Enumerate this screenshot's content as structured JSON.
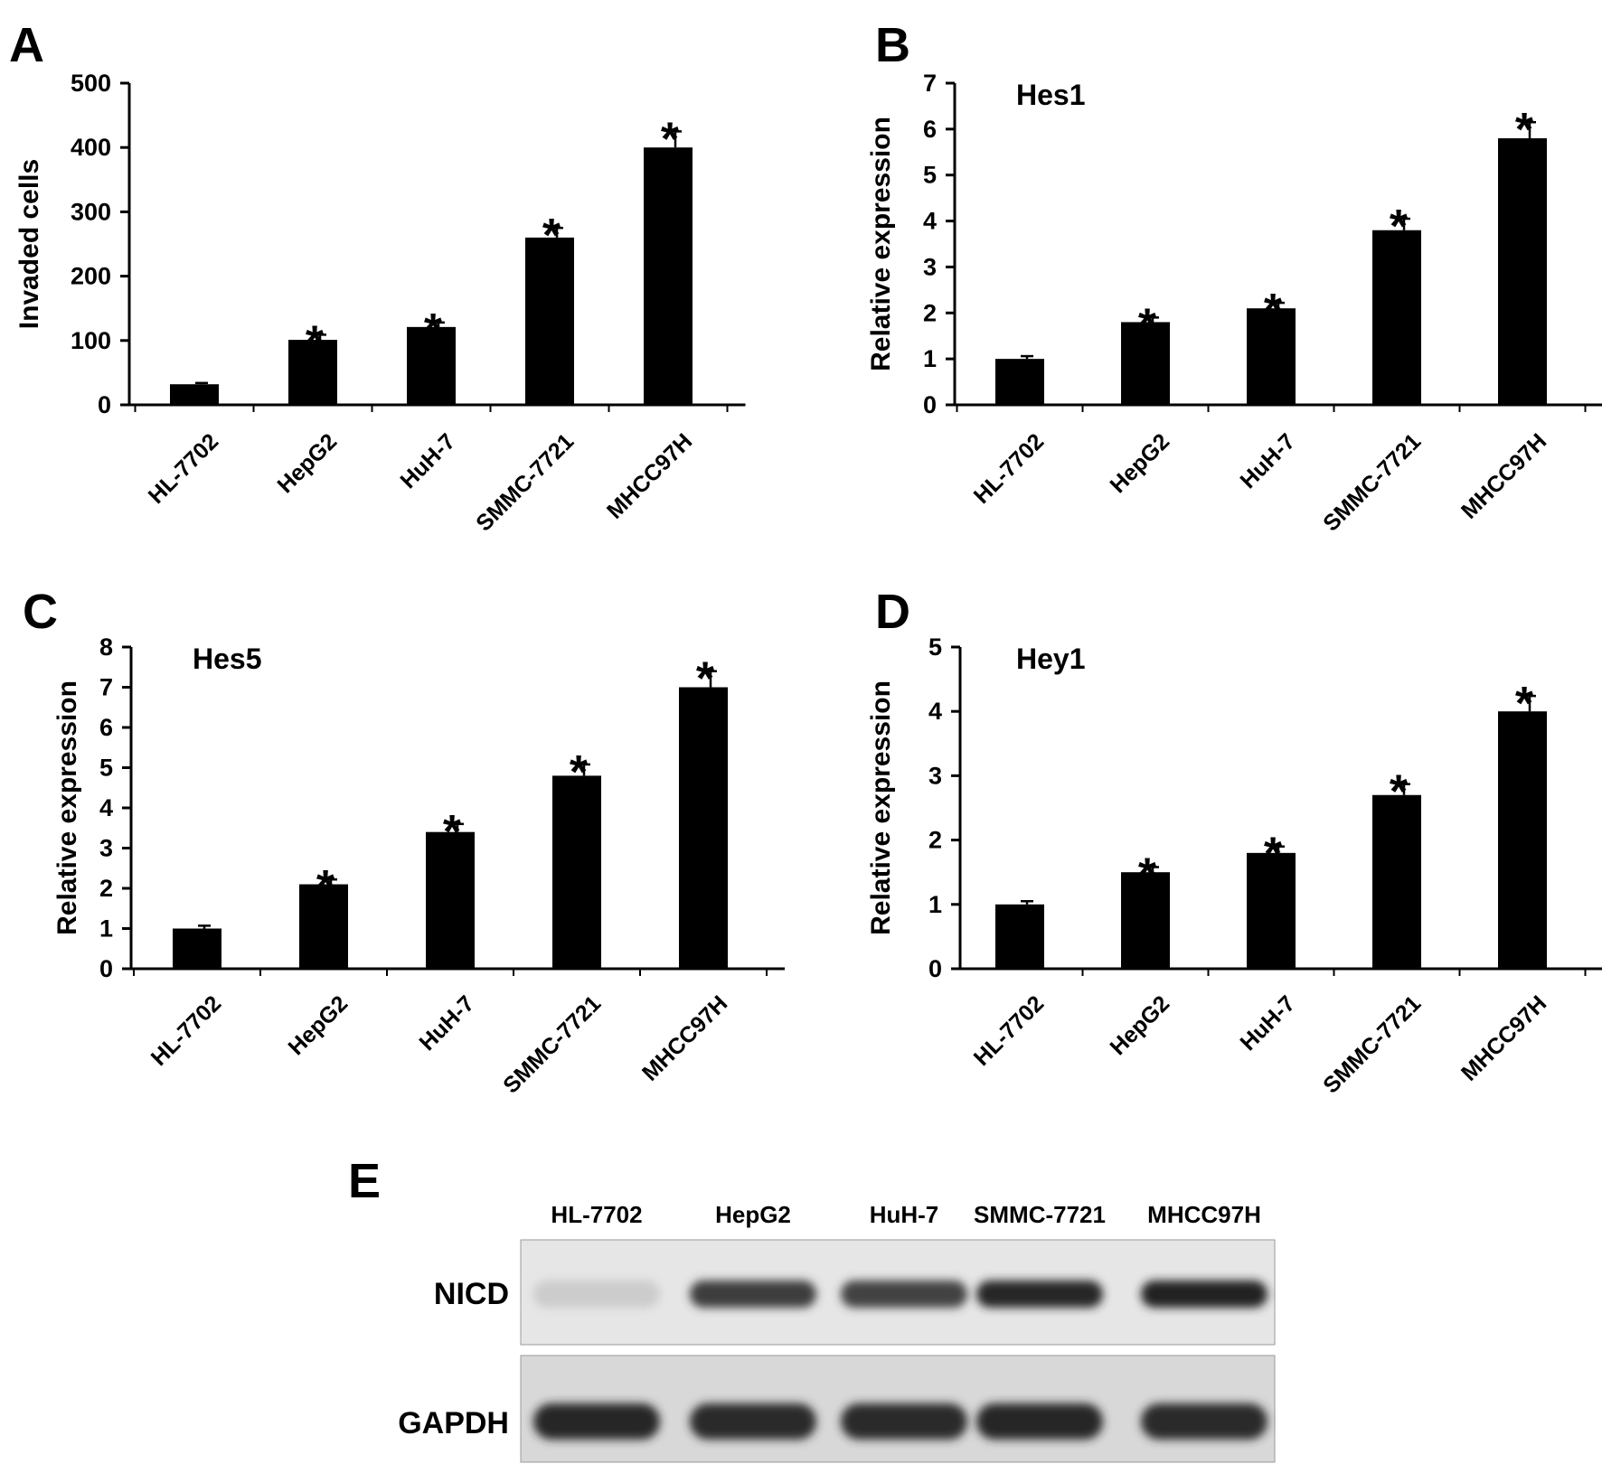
{
  "chart_data": [
    {
      "panel": "A",
      "type": "bar",
      "title": "",
      "xlabel": "",
      "ylabel": "Invaded cells",
      "ylim": [
        0,
        500
      ],
      "yticks": [
        0,
        100,
        200,
        300,
        400,
        500
      ],
      "categories": [
        "HL-7702",
        "HepG2",
        "HuH-7",
        "SMMC-7721",
        "MHCC97H"
      ],
      "values": [
        32,
        101,
        121,
        260,
        400
      ],
      "errors": [
        2,
        8,
        7,
        15,
        25
      ],
      "significance": [
        "",
        "*",
        "*",
        "*",
        "*"
      ],
      "grid": false,
      "legend": "none"
    },
    {
      "panel": "B",
      "type": "bar",
      "title": "Hes1",
      "xlabel": "",
      "ylabel": "Relative expression",
      "ylim": [
        0,
        7
      ],
      "yticks": [
        0,
        1,
        2,
        3,
        4,
        5,
        6,
        7
      ],
      "categories": [
        "HL-7702",
        "HepG2",
        "HuH-7",
        "SMMC-7721",
        "MHCC97H"
      ],
      "values": [
        1.0,
        1.8,
        2.1,
        3.8,
        5.8
      ],
      "errors": [
        0.06,
        0.1,
        0.12,
        0.25,
        0.35
      ],
      "significance": [
        "",
        "*",
        "*",
        "*",
        "*"
      ],
      "grid": false,
      "legend": "none"
    },
    {
      "panel": "C",
      "type": "bar",
      "title": "Hes5",
      "xlabel": "",
      "ylabel": "Relative expression",
      "ylim": [
        0,
        8
      ],
      "yticks": [
        0,
        1,
        2,
        3,
        4,
        5,
        6,
        7,
        8
      ],
      "categories": [
        "HL-7702",
        "HepG2",
        "HuH-7",
        "SMMC-7721",
        "MHCC97H"
      ],
      "values": [
        1.0,
        2.1,
        3.4,
        4.8,
        7.0
      ],
      "errors": [
        0.07,
        0.12,
        0.2,
        0.28,
        0.4
      ],
      "significance": [
        "",
        "*",
        "*",
        "*",
        "*"
      ],
      "grid": false,
      "legend": "none"
    },
    {
      "panel": "D",
      "type": "bar",
      "title": "Hey1",
      "xlabel": "",
      "ylabel": "Relative expression",
      "ylim": [
        0,
        5
      ],
      "yticks": [
        0,
        1,
        2,
        3,
        4,
        5
      ],
      "categories": [
        "HL-7702",
        "HepG2",
        "HuH-7",
        "SMMC-7721",
        "MHCC97H"
      ],
      "values": [
        1.0,
        1.5,
        1.8,
        2.7,
        4.0
      ],
      "errors": [
        0.05,
        0.08,
        0.1,
        0.17,
        0.24
      ],
      "significance": [
        "",
        "*",
        "*",
        "*",
        "*"
      ],
      "grid": false,
      "legend": "none"
    }
  ],
  "western_blot": {
    "panel": "E",
    "lanes": [
      "HL-7702",
      "HepG2",
      "HuH-7",
      "SMMC-7721",
      "MHCC97H"
    ],
    "rows": [
      {
        "label": "NICD",
        "intensity": [
          0.12,
          0.78,
          0.76,
          0.9,
          0.92
        ]
      },
      {
        "label": "GAPDH",
        "intensity": [
          0.9,
          0.88,
          0.88,
          0.9,
          0.88
        ]
      }
    ],
    "colors": {
      "membrane": "#e6e6e6",
      "membrane_gapdh": "#d8d8d8",
      "band": "#1a1a1a"
    }
  },
  "colors": {
    "bar": "#000000",
    "axis": "#000000",
    "background": "#ffffff"
  }
}
